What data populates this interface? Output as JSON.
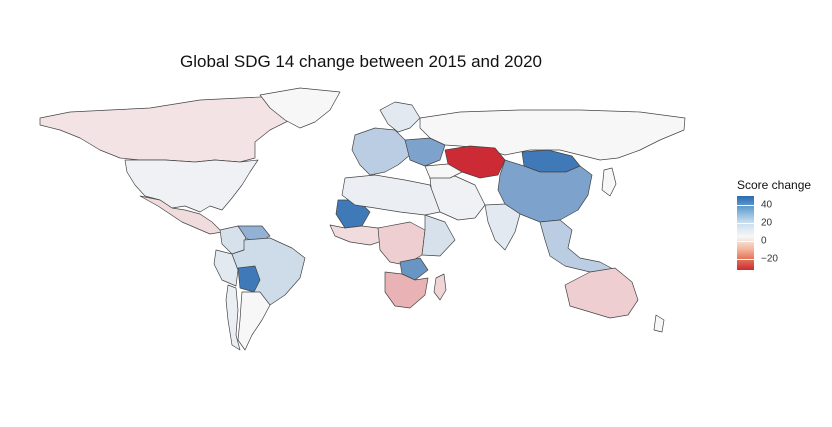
{
  "title": "Global SDG 14 change between 2015 and 2020",
  "legend": {
    "title": "Score change",
    "ticks": [
      "40",
      "20",
      "0",
      "−20"
    ],
    "colors": {
      "high": "#2c6bb0",
      "mid": "#f7f7f7",
      "low": "#cc2a35"
    }
  },
  "map_data": {
    "type": "choropleth",
    "variable": "Score change",
    "domain": [
      -30,
      50
    ],
    "regions": [
      {
        "region": "Canada",
        "value": -3
      },
      {
        "region": "United States",
        "value": 2
      },
      {
        "region": "Greenland",
        "value": 0
      },
      {
        "region": "Mexico",
        "value": -4
      },
      {
        "region": "Colombia",
        "value": 8
      },
      {
        "region": "Venezuela",
        "value": 25
      },
      {
        "region": "Peru",
        "value": 5
      },
      {
        "region": "Brazil",
        "value": 10
      },
      {
        "region": "Bolivia",
        "value": 45
      },
      {
        "region": "Argentina",
        "value": 0
      },
      {
        "region": "Chile",
        "value": 3
      },
      {
        "region": "Europe West",
        "value": 15
      },
      {
        "region": "Scandinavia",
        "value": 5
      },
      {
        "region": "Eastern Europe",
        "value": 30
      },
      {
        "region": "Russia",
        "value": 0
      },
      {
        "region": "Kazakhstan",
        "value": -30
      },
      {
        "region": "Mongolia",
        "value": 45
      },
      {
        "region": "China",
        "value": 30
      },
      {
        "region": "India",
        "value": 5
      },
      {
        "region": "Middle East",
        "value": 2
      },
      {
        "region": "Turkey",
        "value": 0
      },
      {
        "region": "Mali",
        "value": 45
      },
      {
        "region": "West Africa",
        "value": -4
      },
      {
        "region": "North Africa",
        "value": 3
      },
      {
        "region": "Central Africa",
        "value": -6
      },
      {
        "region": "East Africa",
        "value": 8
      },
      {
        "region": "Zambia",
        "value": 35
      },
      {
        "region": "Southern Africa",
        "value": -10
      },
      {
        "region": "Madagascar",
        "value": -5
      },
      {
        "region": "Southeast Asia",
        "value": 15
      },
      {
        "region": "Japan",
        "value": 0
      },
      {
        "region": "Australia",
        "value": -6
      },
      {
        "region": "New Zealand",
        "value": 0
      }
    ]
  }
}
